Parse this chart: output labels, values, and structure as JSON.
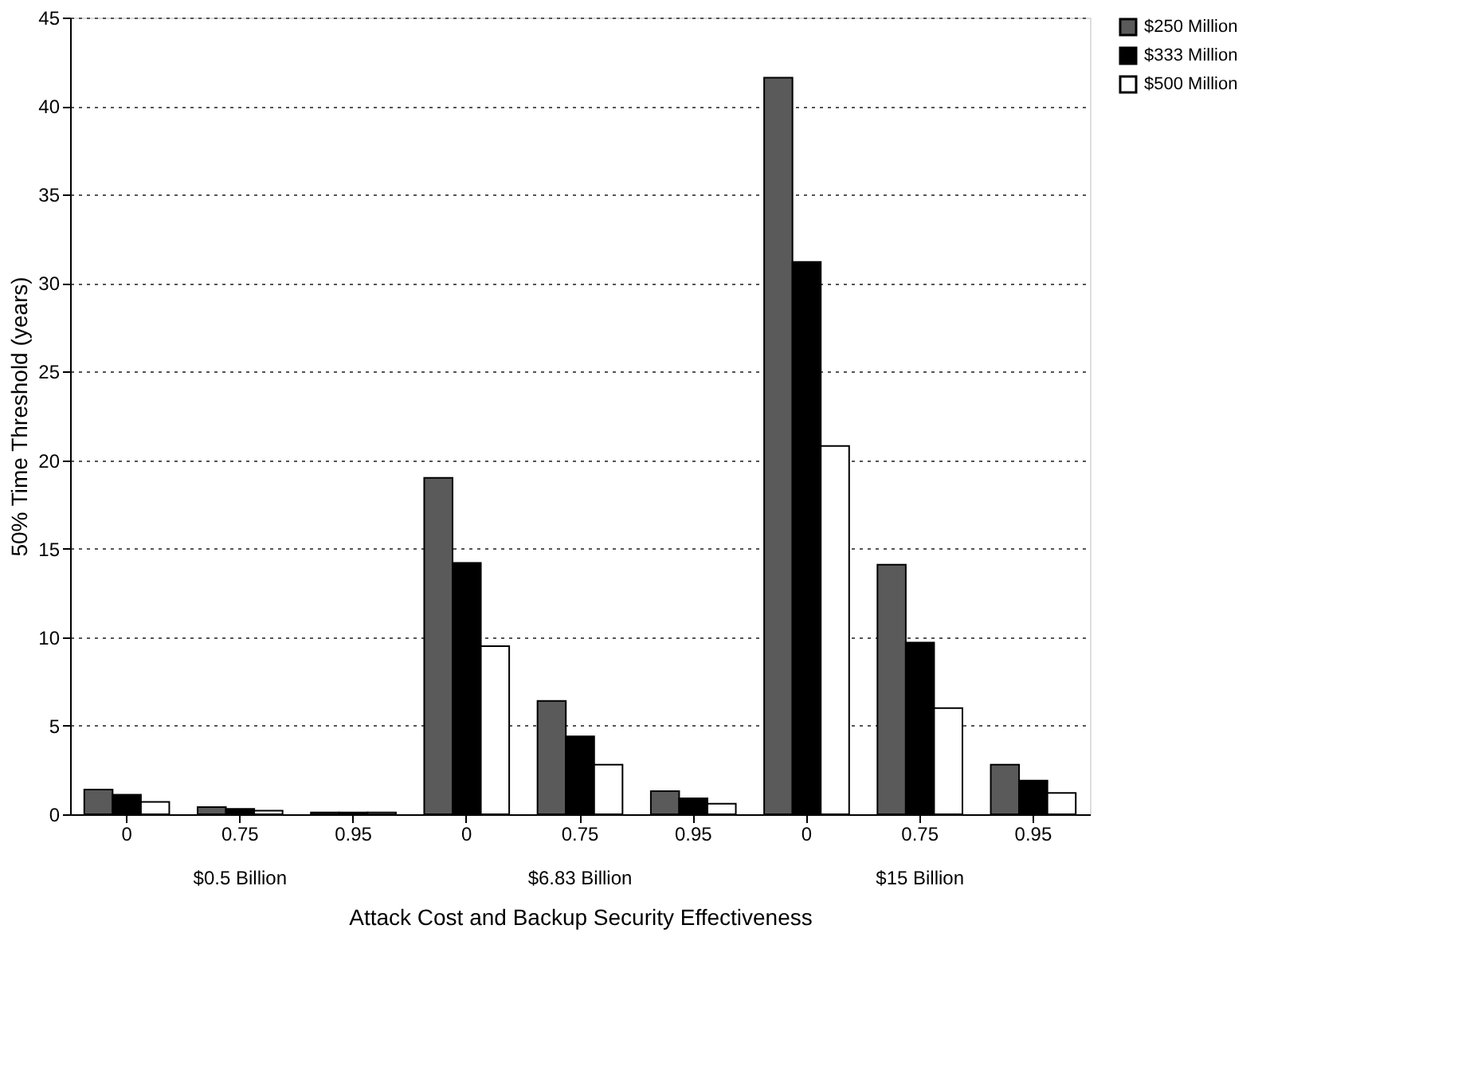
{
  "chart_data": {
    "type": "bar",
    "xlabel": "Attack Cost and Backup Security Effectiveness",
    "ylabel": "50% Time Threshold (years)",
    "categories": [
      "0",
      "0.75",
      "0.95",
      "0",
      "0.75",
      "0.95",
      "0",
      "0.75",
      "0.95"
    ],
    "series": [
      {
        "name": "$250 Million",
        "color": "#5a5a5a",
        "values": [
          1.4,
          0.4,
          0.1,
          19,
          6.4,
          1.3,
          41.6,
          14.1,
          2.8
        ]
      },
      {
        "name": "$333 Million",
        "color": "#000000",
        "values": [
          1.1,
          0.3,
          0.1,
          14.2,
          4.4,
          0.9,
          31.2,
          9.7,
          1.9
        ]
      },
      {
        "name": "$500 Million",
        "color": "#ffffff",
        "values": [
          0.7,
          0.2,
          0.1,
          9.5,
          2.8,
          0.6,
          20.8,
          6.0,
          1.2
        ]
      }
    ],
    "annotations": [
      "$0.5 Billion",
      "$6.83 Billion",
      "$15 Billion"
    ],
    "ylim": [
      0,
      45
    ],
    "yticks": [
      0,
      5,
      10,
      15,
      20,
      25,
      30,
      35,
      40,
      45
    ],
    "grid": "y",
    "legend": "right"
  }
}
